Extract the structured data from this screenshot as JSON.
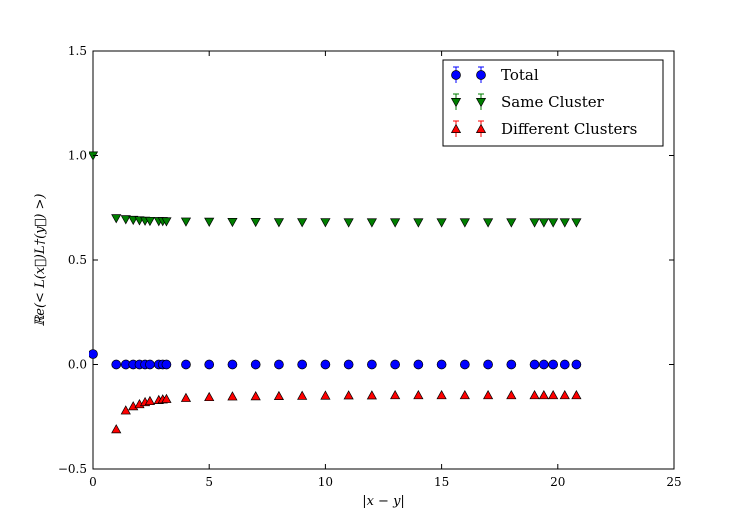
{
  "chart_data": {
    "type": "scatter",
    "xlabel": "|x − y|",
    "ylabel": "ℝe(< L(x⃗)L†(y⃗) >)",
    "xlim": [
      0,
      25
    ],
    "ylim": [
      -0.5,
      1.5
    ],
    "xticks": [
      0,
      5,
      10,
      15,
      20,
      25
    ],
    "yticks": [
      -0.5,
      0.0,
      0.5,
      1.0,
      1.5
    ],
    "xtick_labels": [
      "0",
      "5",
      "10",
      "15",
      "20",
      "25"
    ],
    "ytick_labels": [
      "−0.5",
      "0.0",
      "0.5",
      "1.0",
      "1.5"
    ],
    "grid": false,
    "legend_position": "top-right",
    "series": [
      {
        "name": "Total",
        "color": "#0000ff",
        "marker": "circle",
        "points": [
          [
            0,
            0.05
          ],
          [
            1.0,
            0.0
          ],
          [
            1.41,
            0.0
          ],
          [
            1.73,
            0.0
          ],
          [
            2.0,
            0.0
          ],
          [
            2.24,
            0.0
          ],
          [
            2.45,
            0.0
          ],
          [
            2.83,
            0.0
          ],
          [
            3.0,
            0.0
          ],
          [
            3.16,
            0.0
          ],
          [
            4.0,
            0.0
          ],
          [
            5.0,
            0.0
          ],
          [
            6.0,
            0.0
          ],
          [
            7.0,
            0.0
          ],
          [
            8.0,
            0.0
          ],
          [
            9.0,
            0.0
          ],
          [
            10.0,
            0.0
          ],
          [
            11.0,
            0.0
          ],
          [
            12.0,
            0.0
          ],
          [
            13.0,
            0.0
          ],
          [
            14.0,
            0.0
          ],
          [
            15.0,
            0.0
          ],
          [
            16.0,
            0.0
          ],
          [
            17.0,
            0.0
          ],
          [
            18.0,
            0.0
          ],
          [
            19.0,
            0.0
          ],
          [
            19.4,
            0.0
          ],
          [
            19.8,
            0.0
          ],
          [
            20.3,
            0.0
          ],
          [
            20.8,
            0.0
          ]
        ]
      },
      {
        "name": "Same Cluster",
        "color": "#007f00",
        "marker": "triangle-down",
        "points": [
          [
            0,
            1.0
          ],
          [
            1.0,
            0.7
          ],
          [
            1.41,
            0.695
          ],
          [
            1.73,
            0.692
          ],
          [
            2.0,
            0.69
          ],
          [
            2.24,
            0.688
          ],
          [
            2.45,
            0.687
          ],
          [
            2.83,
            0.686
          ],
          [
            3.0,
            0.686
          ],
          [
            3.16,
            0.685
          ],
          [
            4.0,
            0.684
          ],
          [
            5.0,
            0.683
          ],
          [
            6.0,
            0.682
          ],
          [
            7.0,
            0.682
          ],
          [
            8.0,
            0.681
          ],
          [
            9.0,
            0.681
          ],
          [
            10.0,
            0.681
          ],
          [
            11.0,
            0.68
          ],
          [
            12.0,
            0.68
          ],
          [
            13.0,
            0.68
          ],
          [
            14.0,
            0.68
          ],
          [
            15.0,
            0.68
          ],
          [
            16.0,
            0.68
          ],
          [
            17.0,
            0.68
          ],
          [
            18.0,
            0.68
          ],
          [
            19.0,
            0.68
          ],
          [
            19.4,
            0.68
          ],
          [
            19.8,
            0.68
          ],
          [
            20.3,
            0.68
          ],
          [
            20.8,
            0.68
          ]
        ]
      },
      {
        "name": "Different Clusters",
        "color": "#ff0000",
        "marker": "triangle-up",
        "points": [
          [
            1.0,
            -0.31
          ],
          [
            1.41,
            -0.22
          ],
          [
            1.73,
            -0.2
          ],
          [
            2.0,
            -0.19
          ],
          [
            2.24,
            -0.18
          ],
          [
            2.45,
            -0.175
          ],
          [
            2.83,
            -0.17
          ],
          [
            3.0,
            -0.167
          ],
          [
            3.16,
            -0.165
          ],
          [
            4.0,
            -0.16
          ],
          [
            5.0,
            -0.156
          ],
          [
            6.0,
            -0.153
          ],
          [
            7.0,
            -0.152
          ],
          [
            8.0,
            -0.151
          ],
          [
            9.0,
            -0.15
          ],
          [
            10.0,
            -0.149
          ],
          [
            11.0,
            -0.148
          ],
          [
            12.0,
            -0.148
          ],
          [
            13.0,
            -0.147
          ],
          [
            14.0,
            -0.147
          ],
          [
            15.0,
            -0.147
          ],
          [
            16.0,
            -0.147
          ],
          [
            17.0,
            -0.147
          ],
          [
            18.0,
            -0.147
          ],
          [
            19.0,
            -0.147
          ],
          [
            19.4,
            -0.147
          ],
          [
            19.8,
            -0.147
          ],
          [
            20.3,
            -0.147
          ],
          [
            20.8,
            -0.147
          ]
        ]
      }
    ]
  }
}
